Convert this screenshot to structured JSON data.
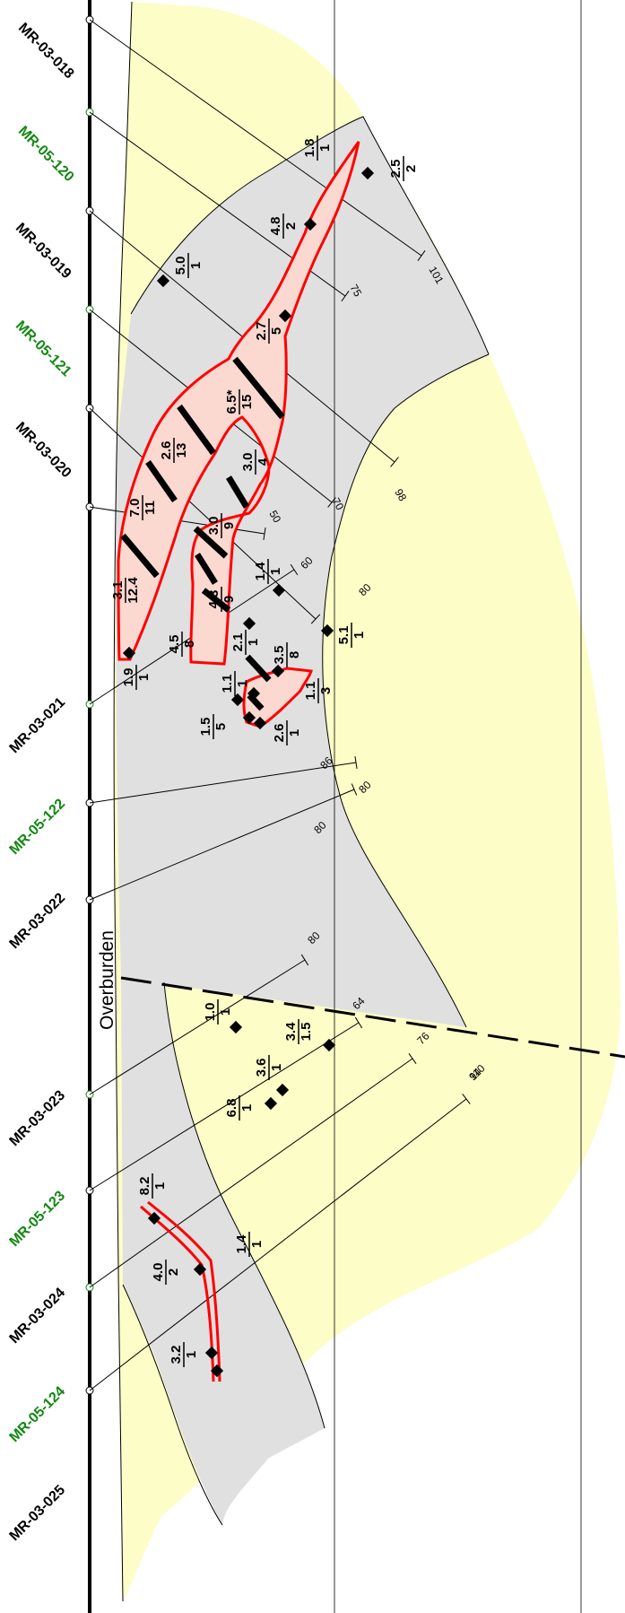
{
  "colors": {
    "waste_fill": "#fdfdc8",
    "zone_fill": "#e0e0e0",
    "vein_outline": "#ff0000",
    "vein_fill": "#fbd8d0",
    "hole_black": "#000000",
    "hole_green": "#118811"
  },
  "overburden_label": "Overburden",
  "holes": [
    {
      "id": "MR-03-018",
      "color": "black"
    },
    {
      "id": "MR-05-120",
      "color": "green"
    },
    {
      "id": "MR-03-019",
      "color": "black"
    },
    {
      "id": "MR-05-121",
      "color": "green"
    },
    {
      "id": "MR-03-020",
      "color": "black"
    },
    {
      "id": "MR-03-021",
      "color": "black"
    },
    {
      "id": "MR-05-122",
      "color": "green"
    },
    {
      "id": "MR-03-022",
      "color": "black"
    },
    {
      "id": "MR-03-023",
      "color": "black"
    },
    {
      "id": "MR-05-123",
      "color": "green"
    },
    {
      "id": "MR-03-024",
      "color": "black"
    },
    {
      "id": "MR-05-124",
      "color": "green"
    },
    {
      "id": "MR-03-025",
      "color": "black"
    }
  ],
  "hole_depths": [
    "101",
    "75",
    "98",
    "70",
    "50",
    "60",
    "80",
    "80",
    "86",
    "80",
    "80",
    "64",
    "76",
    "94",
    "110"
  ],
  "intercepts": [
    {
      "top": "1.8",
      "bottom": "1"
    },
    {
      "top": "2.5",
      "bottom": "2"
    },
    {
      "top": "4.8",
      "bottom": "2"
    },
    {
      "top": "5.0",
      "bottom": "1"
    },
    {
      "top": "2.7",
      "bottom": "5"
    },
    {
      "top": "6.5*",
      "bottom": "15"
    },
    {
      "top": "2.6",
      "bottom": "13"
    },
    {
      "top": "3.0",
      "bottom": "4"
    },
    {
      "top": "7.0",
      "bottom": "11"
    },
    {
      "top": "3.0",
      "bottom": "9"
    },
    {
      "top": "3.1",
      "bottom": "12.4"
    },
    {
      "top": "1.4",
      "bottom": "1"
    },
    {
      "top": "4.3",
      "bottom": "9"
    },
    {
      "top": "5.1",
      "bottom": "1"
    },
    {
      "top": "4.5",
      "bottom": "8"
    },
    {
      "top": "2.1",
      "bottom": "1"
    },
    {
      "top": "3.5",
      "bottom": "8"
    },
    {
      "top": "1.9",
      "bottom": "1"
    },
    {
      "top": "1.1",
      "bottom": "1"
    },
    {
      "top": "1.1",
      "bottom": "3"
    },
    {
      "top": "1.5",
      "bottom": "5"
    },
    {
      "top": "2.6",
      "bottom": "1"
    },
    {
      "top": "1.0",
      "bottom": "1"
    },
    {
      "top": "3.4",
      "bottom": "1.5"
    },
    {
      "top": "3.6",
      "bottom": "1"
    },
    {
      "top": "6.8",
      "bottom": "1"
    },
    {
      "top": "8.2",
      "bottom": "1"
    },
    {
      "top": "1.4",
      "bottom": "1"
    },
    {
      "top": "4.0",
      "bottom": "2"
    },
    {
      "top": "3.2",
      "bottom": "1"
    }
  ]
}
